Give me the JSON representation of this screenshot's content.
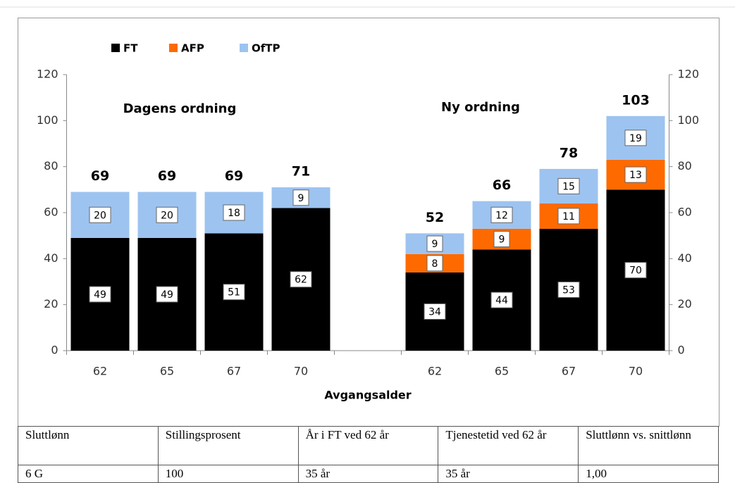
{
  "chart_data": {
    "type": "stacked_bar",
    "categories": [
      "62",
      "65",
      "67",
      "70",
      null,
      "62",
      "65",
      "67",
      "70"
    ],
    "series": [
      {
        "name": "FT",
        "color": "#000000",
        "values": [
          49,
          49,
          51,
          62,
          null,
          34,
          44,
          53,
          70
        ]
      },
      {
        "name": "AFP",
        "color": "#ff6a00",
        "values": [
          null,
          null,
          null,
          null,
          null,
          8,
          9,
          11,
          13
        ]
      },
      {
        "name": "OfTP",
        "color": "#9dc3f0",
        "values": [
          20,
          20,
          18,
          9,
          null,
          9,
          12,
          15,
          19
        ]
      }
    ],
    "totals": [
      69,
      69,
      69,
      71,
      null,
      52,
      66,
      78,
      103
    ],
    "annotations": [
      "Dagens ordning",
      "Ny ordning"
    ],
    "x_label": "Avgangsalder",
    "ylim": [
      0,
      120
    ],
    "yticks": [
      0,
      20,
      40,
      60,
      80,
      100,
      120
    ],
    "y2lim": [
      0,
      120
    ],
    "y2ticks": [
      0,
      20,
      40,
      60,
      80,
      100,
      120
    ],
    "legend": "top-left"
  },
  "table": {
    "header": [
      "Sluttlønn",
      "Stillingsprosent",
      "År i FT ved 62 år",
      "Tjenestetid ved 62 år",
      "Sluttlønn vs. snittlønn"
    ],
    "rows": [
      [
        "6 G",
        "100",
        "35 år",
        "35 år",
        "1,00"
      ]
    ]
  }
}
